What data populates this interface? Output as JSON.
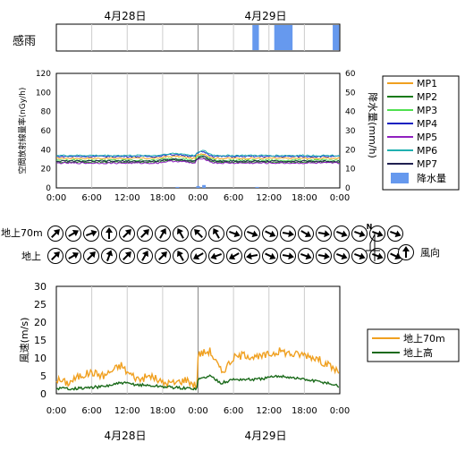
{
  "dates": {
    "day1": "4月28日",
    "day2": "4月29日"
  },
  "rain_sense": {
    "label": "感雨",
    "marks": [
      [
        33.2,
        34.3
      ],
      [
        36.9,
        40.0
      ],
      [
        46.8,
        47.9
      ]
    ]
  },
  "time_ticks": [
    "0:00",
    "6:00",
    "12:00",
    "18:00",
    "0:00",
    "6:00",
    "12:00",
    "18:00",
    "0:00"
  ],
  "wind_dir": {
    "row1_label": "地上70m",
    "row2_label": "地上",
    "legend_label": "風向",
    "north_label": "N",
    "row1": [
      45,
      60,
      70,
      0,
      45,
      45,
      30,
      330,
      315,
      330,
      110,
      110,
      115,
      100,
      120,
      100,
      110,
      110,
      110,
      110
    ],
    "row2": [
      45,
      60,
      45,
      20,
      45,
      30,
      45,
      330,
      240,
      250,
      240,
      260,
      115,
      100,
      110,
      100,
      110,
      110,
      110,
      115
    ]
  },
  "chart_data": [
    {
      "type": "line",
      "ylabel": "空間放射線量率(nGy/h)",
      "y2label": "降水量(mm/h)",
      "ylim": [
        0,
        120
      ],
      "y2lim": [
        0,
        60
      ],
      "yticks": [
        "0",
        "20",
        "40",
        "60",
        "80",
        "100",
        "120"
      ],
      "y2ticks": [
        "0",
        "10",
        "20",
        "30",
        "40",
        "50",
        "60"
      ],
      "x_range_hours": [
        0,
        48
      ],
      "series": [
        {
          "name": "MP1",
          "color": "#f0a020",
          "base": 31
        },
        {
          "name": "MP2",
          "color": "#1a7a1a",
          "base": 27
        },
        {
          "name": "MP3",
          "color": "#50e050",
          "base": 29
        },
        {
          "name": "MP4",
          "color": "#1020c0",
          "base": 33
        },
        {
          "name": "MP5",
          "color": "#9020c0",
          "base": 26
        },
        {
          "name": "MP6",
          "color": "#20b0b0",
          "base": 34
        },
        {
          "name": "MP7",
          "color": "#202050",
          "base": 28
        }
      ],
      "precip": {
        "name": "降水量",
        "color": "#6699ee",
        "bars": [
          [
            20.5,
            0.5
          ],
          [
            24.0,
            1.0
          ],
          [
            25.0,
            1.5
          ],
          [
            34.0,
            0.5
          ]
        ]
      }
    },
    {
      "type": "line",
      "ylabel": "風速(m/s)",
      "ylim": [
        0,
        30
      ],
      "yticks": [
        "0",
        "5",
        "10",
        "15",
        "20",
        "25",
        "30"
      ],
      "x_range_hours": [
        0,
        48
      ],
      "series": [
        {
          "name": "地上70m",
          "color": "#f0a020",
          "points": [
            [
              0,
              4
            ],
            [
              2,
              3
            ],
            [
              4,
              5
            ],
            [
              6,
              6
            ],
            [
              8,
              5
            ],
            [
              10,
              7
            ],
            [
              11,
              8
            ],
            [
              12,
              6
            ],
            [
              14,
              4
            ],
            [
              16,
              5
            ],
            [
              18,
              3
            ],
            [
              20,
              3
            ],
            [
              22,
              4
            ],
            [
              23.9,
              2
            ],
            [
              24,
              11
            ],
            [
              26,
              12
            ],
            [
              28,
              6
            ],
            [
              30,
              10
            ],
            [
              32,
              11
            ],
            [
              34,
              10
            ],
            [
              36,
              11
            ],
            [
              38,
              12
            ],
            [
              40,
              11
            ],
            [
              42,
              11
            ],
            [
              44,
              10
            ],
            [
              46,
              8
            ],
            [
              48,
              6
            ]
          ]
        },
        {
          "name": "地上高",
          "color": "#1a6a1a",
          "points": [
            [
              0,
              1.5
            ],
            [
              4,
              1.5
            ],
            [
              8,
              2
            ],
            [
              11,
              3
            ],
            [
              14,
              2.5
            ],
            [
              18,
              2
            ],
            [
              22,
              1.5
            ],
            [
              23.9,
              1.5
            ],
            [
              24,
              4
            ],
            [
              26,
              5
            ],
            [
              28,
              3
            ],
            [
              30,
              4
            ],
            [
              34,
              4
            ],
            [
              38,
              5
            ],
            [
              42,
              4
            ],
            [
              46,
              3
            ],
            [
              48,
              2
            ]
          ]
        }
      ]
    }
  ]
}
